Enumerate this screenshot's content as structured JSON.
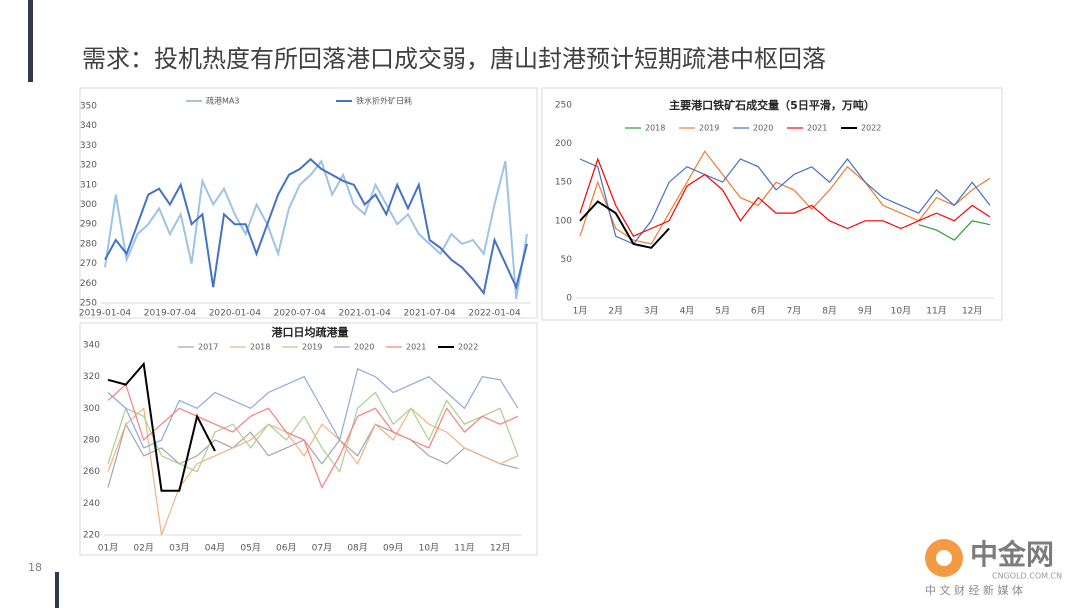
{
  "slide": {
    "title": "需求：投机热度有所回落港口成交弱，唐山封港预计短期疏港中枢回落",
    "page_number": "18",
    "watermark": {
      "name": "中金网",
      "site": "CNGOLD.COM.CN",
      "slogan": "中 文 财 经 新 媒 体"
    }
  },
  "chart_data": [
    {
      "type": "line",
      "legend": "top",
      "grid": false,
      "categories": [
        "2019-01-04",
        null,
        null,
        null,
        null,
        null,
        "2019-07-04",
        null,
        null,
        null,
        null,
        null,
        "2020-01-04",
        null,
        null,
        null,
        null,
        null,
        "2020-07-04",
        null,
        null,
        null,
        null,
        null,
        "2021-01-04",
        null,
        null,
        null,
        null,
        null,
        "2021-07-04",
        null,
        null,
        null,
        null,
        null,
        "2022-01-04",
        null,
        null,
        null
      ],
      "ylim": [
        250,
        350
      ],
      "yticks": [
        250,
        260,
        270,
        280,
        290,
        300,
        310,
        320,
        330,
        340,
        350
      ],
      "series": [
        {
          "name": "疏港MA3",
          "color": "#9dc3e6",
          "values": [
            268,
            305,
            272,
            285,
            290,
            298,
            285,
            295,
            270,
            312,
            300,
            308,
            295,
            285,
            300,
            290,
            275,
            298,
            310,
            315,
            322,
            305,
            315,
            300,
            295,
            310,
            300,
            290,
            295,
            285,
            280,
            275,
            285,
            280,
            282,
            275,
            300,
            322,
            252,
            285
          ]
        },
        {
          "name": "铁水折外矿日耗",
          "color": "#4472c4",
          "values": [
            272,
            282,
            275,
            290,
            305,
            308,
            300,
            310,
            290,
            295,
            258,
            295,
            290,
            290,
            275,
            290,
            305,
            315,
            318,
            323,
            318,
            315,
            312,
            310,
            300,
            305,
            295,
            310,
            298,
            310,
            282,
            278,
            272,
            268,
            262,
            255,
            282,
            270,
            258,
            280
          ]
        }
      ]
    },
    {
      "type": "line",
      "title": "主要港口铁矿石成交量（5日平滑，万吨）",
      "legend": "top",
      "grid": false,
      "categories": [
        "1月",
        null,
        "2月",
        null,
        "3月",
        null,
        "4月",
        null,
        "5月",
        null,
        "6月",
        null,
        "7月",
        null,
        "8月",
        null,
        "9月",
        null,
        "10月",
        null,
        "11月",
        null,
        "12月",
        null
      ],
      "ylim": [
        0,
        250
      ],
      "yticks": [
        0,
        50,
        100,
        150,
        200,
        250
      ],
      "series": [
        {
          "name": "2018",
          "color": "#2ca02c",
          "values": [
            null,
            null,
            null,
            null,
            null,
            null,
            null,
            null,
            null,
            null,
            null,
            null,
            null,
            null,
            null,
            null,
            null,
            null,
            null,
            95,
            88,
            75,
            100,
            95
          ]
        },
        {
          "name": "2019",
          "color": "#ed7d31",
          "values": [
            80,
            150,
            90,
            75,
            70,
            110,
            150,
            190,
            160,
            130,
            120,
            150,
            140,
            115,
            140,
            170,
            150,
            120,
            110,
            100,
            130,
            120,
            140,
            155
          ]
        },
        {
          "name": "2020",
          "color": "#4472c4",
          "values": [
            180,
            170,
            80,
            70,
            100,
            150,
            170,
            160,
            150,
            180,
            170,
            140,
            160,
            170,
            150,
            180,
            150,
            130,
            120,
            110,
            140,
            120,
            150,
            120
          ]
        },
        {
          "name": "2021",
          "color": "#ff0000",
          "values": [
            110,
            180,
            120,
            80,
            90,
            100,
            145,
            160,
            140,
            100,
            130,
            110,
            110,
            120,
            100,
            90,
            100,
            100,
            90,
            100,
            110,
            100,
            120,
            105
          ]
        },
        {
          "name": "2022",
          "color": "#000000",
          "values": [
            100,
            125,
            110,
            70,
            65,
            90,
            null,
            null,
            null,
            null,
            null,
            null,
            null,
            null,
            null,
            null,
            null,
            null,
            null,
            null,
            null,
            null,
            null,
            null
          ]
        }
      ]
    },
    {
      "type": "line",
      "title": "港口日均疏港量",
      "legend": "top",
      "grid": false,
      "categories": [
        "01月",
        null,
        "02月",
        null,
        "03月",
        null,
        "04月",
        null,
        "05月",
        null,
        "06月",
        null,
        "07月",
        null,
        "08月",
        null,
        "09月",
        null,
        "10月",
        null,
        "11月",
        null,
        "12月",
        null
      ],
      "ylim": [
        220,
        340
      ],
      "yticks": [
        220,
        240,
        260,
        280,
        300,
        320,
        340
      ],
      "series": [
        {
          "name": "2017",
          "color": "#a5a5a5",
          "values": [
            250,
            290,
            270,
            275,
            265,
            270,
            280,
            275,
            285,
            270,
            275,
            280,
            265,
            280,
            270,
            290,
            285,
            280,
            270,
            265,
            275,
            270,
            265,
            262
          ]
        },
        {
          "name": "2018",
          "color": "#f4b183",
          "values": [
            260,
            290,
            300,
            220,
            250,
            265,
            270,
            275,
            280,
            290,
            285,
            270,
            290,
            280,
            265,
            290,
            280,
            300,
            290,
            285,
            275,
            270,
            265,
            270
          ]
        },
        {
          "name": "2019",
          "color": "#a9d18e",
          "values": [
            265,
            300,
            295,
            270,
            265,
            260,
            285,
            290,
            275,
            290,
            280,
            295,
            275,
            260,
            300,
            310,
            290,
            300,
            280,
            305,
            290,
            295,
            300,
            270
          ]
        },
        {
          "name": "2020",
          "color": "#8faadc",
          "values": [
            310,
            300,
            275,
            280,
            305,
            300,
            310,
            305,
            300,
            310,
            315,
            320,
            300,
            280,
            325,
            320,
            310,
            315,
            320,
            310,
            300,
            320,
            318,
            300
          ]
        },
        {
          "name": "2021",
          "color": "#ff7c80",
          "values": [
            305,
            315,
            280,
            290,
            300,
            295,
            290,
            285,
            295,
            300,
            285,
            280,
            250,
            270,
            295,
            300,
            285,
            280,
            275,
            300,
            285,
            295,
            290,
            295
          ]
        },
        {
          "name": "2022",
          "color": "#000000",
          "values": [
            318,
            315,
            328,
            248,
            248,
            295,
            273,
            null,
            null,
            null,
            null,
            null,
            null,
            null,
            null,
            null,
            null,
            null,
            null,
            null,
            null,
            null,
            null,
            null
          ]
        }
      ]
    }
  ]
}
